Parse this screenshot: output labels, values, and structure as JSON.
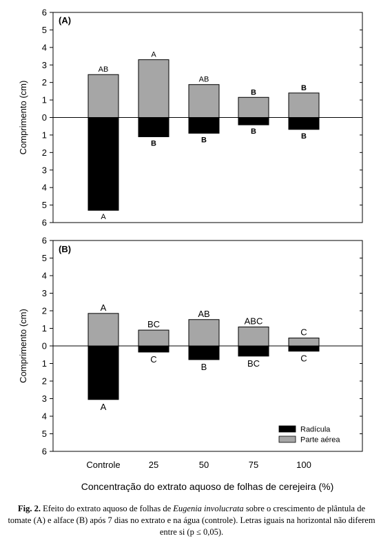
{
  "chart_data": [
    {
      "type": "bar",
      "panel_label": "(A)",
      "categories": [
        "Controle",
        "25",
        "50",
        "75",
        "100"
      ],
      "ylabel": "Comprimento (cm)",
      "yticks": [
        "6",
        "5",
        "4",
        "3",
        "2",
        "1",
        "0",
        "1",
        "2",
        "3",
        "4",
        "5",
        "6"
      ],
      "ylim": [
        -6,
        6
      ],
      "series": [
        {
          "name": "Parte aérea",
          "color": "#a6a6a6",
          "values": [
            2.45,
            3.3,
            1.88,
            1.15,
            1.4
          ],
          "labels": [
            "AB",
            "A",
            "AB",
            "B",
            "B"
          ]
        },
        {
          "name": "Radícula",
          "color": "#000000",
          "values": [
            -5.3,
            -1.1,
            -0.9,
            -0.42,
            -0.68
          ],
          "labels": [
            "A",
            "B",
            "B",
            "B",
            "B"
          ]
        }
      ]
    },
    {
      "type": "bar",
      "panel_label": "(B)",
      "categories": [
        "Controle",
        "25",
        "50",
        "75",
        "100"
      ],
      "ylabel": "Comprimento (cm)",
      "yticks": [
        "6",
        "5",
        "4",
        "3",
        "2",
        "1",
        "0",
        "1",
        "2",
        "3",
        "4",
        "5",
        "6"
      ],
      "ylim": [
        -6,
        6
      ],
      "series": [
        {
          "name": "Parte aérea",
          "color": "#a6a6a6",
          "values": [
            1.85,
            0.9,
            1.5,
            1.08,
            0.45
          ],
          "labels": [
            "A",
            "BC",
            "AB",
            "ABC",
            "C"
          ]
        },
        {
          "name": "Radícula",
          "color": "#000000",
          "values": [
            -3.05,
            -0.35,
            -0.78,
            -0.58,
            -0.3
          ],
          "labels": [
            "A",
            "C",
            "B",
            "BC",
            "C"
          ]
        }
      ],
      "legend": [
        {
          "name": "Radícula",
          "color": "#000000"
        },
        {
          "name": "Parte aérea",
          "color": "#a6a6a6"
        }
      ],
      "legend_position": "bottom-right"
    }
  ],
  "xlabel": "Concentração do extrato aquoso de folhas de cerejeira (%)",
  "caption": {
    "prefix": "Fig. 2.",
    "text_before_species": "Efeito do extrato aquoso de folhas de",
    "species": "Eugenia involucrata",
    "text_after_species": "sobre o crescimento de plântula de tomate (A) e alface (B) após 7 dias no extrato e na água (controle). Letras iguais na horizontal não diferem entre si (p ≤ 0,05)."
  }
}
